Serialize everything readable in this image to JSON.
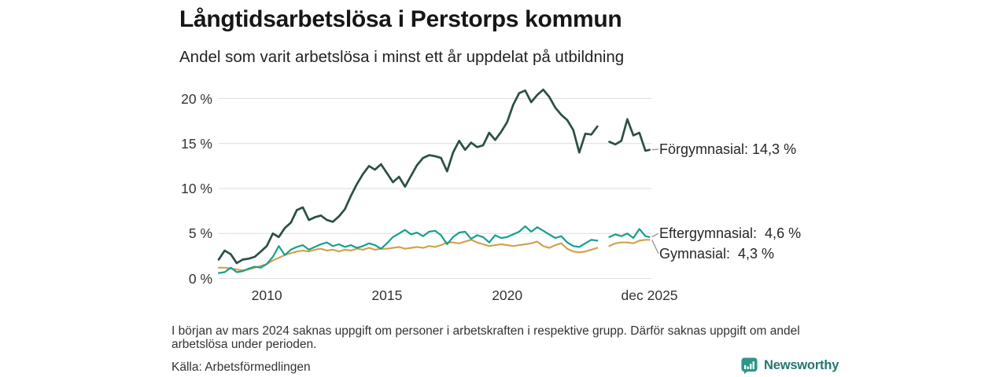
{
  "title": "Långtidsarbetslösa i Perstorps kommun",
  "subtitle": "Andel som varit arbetslösa i minst ett år uppdelat på utbildning",
  "footnote": "I början av mars 2024 saknas uppgift om personer i arbetskraften i respektive grupp. Därför saknas uppgift om andel arbetslösa under perioden.",
  "source": "Källa: Arbetsförmedlingen",
  "logo": {
    "text": "Newsworthy",
    "icon": "bar-chart-speech-bubble-icon",
    "icon_color": "#2e9688",
    "text_color": "#23786e"
  },
  "chart_data": {
    "type": "line",
    "title": "Långtidsarbetslösa i Perstorps kommun",
    "subtitle": "Andel som varit arbetslösa i minst ett år uppdelat på utbildning",
    "xlim": [
      2008,
      2026
    ],
    "ylim": [
      0,
      21.5
    ],
    "grid": "horizontal",
    "grid_color": "#dcdcdc",
    "connector_color": "#8c8c8c",
    "gap_note": "Data missing around March 2024 (null values)",
    "yticks": [
      {
        "label": "20 %",
        "value": 20
      },
      {
        "label": "15 %",
        "value": 15
      },
      {
        "label": "10 %",
        "value": 10
      },
      {
        "label": "5 %",
        "value": 5
      },
      {
        "label": "0 %",
        "value": 0
      }
    ],
    "xticks": [
      {
        "label": "2010",
        "x": 2010
      },
      {
        "label": "2015",
        "x": 2015
      },
      {
        "label": "2020",
        "x": 2020
      },
      {
        "label": "dec 2025",
        "x": 2025.92
      }
    ],
    "x": [
      2008,
      2008.25,
      2008.5,
      2008.75,
      2009,
      2009.25,
      2009.5,
      2009.75,
      2010,
      2010.25,
      2010.5,
      2010.75,
      2011,
      2011.25,
      2011.5,
      2011.75,
      2012,
      2012.25,
      2012.5,
      2012.75,
      2013,
      2013.25,
      2013.5,
      2013.75,
      2014,
      2014.25,
      2014.5,
      2014.75,
      2015,
      2015.25,
      2015.5,
      2015.75,
      2016,
      2016.25,
      2016.5,
      2016.75,
      2017,
      2017.25,
      2017.5,
      2017.75,
      2018,
      2018.25,
      2018.5,
      2018.75,
      2019,
      2019.25,
      2019.5,
      2019.75,
      2020,
      2020.25,
      2020.5,
      2020.75,
      2021,
      2021.25,
      2021.5,
      2021.75,
      2022,
      2022.25,
      2022.5,
      2022.75,
      2023,
      2023.25,
      2023.5,
      2023.75,
      2024,
      2024.25,
      2024.5,
      2024.75,
      2025,
      2025.25,
      2025.5,
      2025.75,
      2025.92
    ],
    "series": [
      {
        "name": "Gymnasial",
        "display_label": "Gymnasial:  4,3 %",
        "final_value": 4.3,
        "final_value_label": "4,3 %",
        "color": "#d2a24b",
        "stroke_width": 2.2,
        "label_y": 323,
        "values": [
          1.2,
          1.2,
          1.1,
          1.0,
          0.9,
          1.0,
          1.2,
          1.4,
          1.6,
          2.0,
          2.3,
          2.6,
          2.8,
          3.0,
          3.1,
          3.0,
          3.2,
          3.3,
          3.1,
          3.2,
          3.0,
          3.2,
          3.1,
          3.3,
          3.2,
          3.4,
          3.2,
          3.3,
          3.3,
          3.4,
          3.5,
          3.3,
          3.4,
          3.5,
          3.4,
          3.6,
          3.5,
          3.7,
          4.0,
          4.0,
          3.9,
          4.1,
          4.3,
          4.0,
          3.8,
          3.6,
          3.7,
          3.8,
          3.7,
          3.6,
          3.7,
          3.8,
          3.9,
          4.1,
          3.6,
          3.4,
          3.7,
          3.9,
          3.3,
          3.0,
          2.9,
          3.0,
          3.2,
          3.4,
          null,
          3.6,
          3.9,
          4.0,
          4.0,
          3.9,
          4.2,
          4.3,
          4.3
        ]
      },
      {
        "name": "Eftergymnasial",
        "display_label": "Eftergymnasial:  4,6 %",
        "final_value": 4.6,
        "final_value_label": "4,6 %",
        "color": "#17a08c",
        "stroke_width": 2.2,
        "label_y": 297,
        "values": [
          0.6,
          0.7,
          1.2,
          0.7,
          0.8,
          1.1,
          1.3,
          1.2,
          1.6,
          2.4,
          3.6,
          2.6,
          3.2,
          3.5,
          3.7,
          3.2,
          3.5,
          3.8,
          4.0,
          3.6,
          3.8,
          3.5,
          3.7,
          3.4,
          3.6,
          3.9,
          3.7,
          3.3,
          3.9,
          4.6,
          5.0,
          5.4,
          4.9,
          5.1,
          4.7,
          5.2,
          5.3,
          4.8,
          3.8,
          4.6,
          5.1,
          5.2,
          4.4,
          4.8,
          4.6,
          4.0,
          4.8,
          4.5,
          4.6,
          4.9,
          5.2,
          5.8,
          5.2,
          5.7,
          5.3,
          4.9,
          4.5,
          4.7,
          4.0,
          3.6,
          3.5,
          3.9,
          4.3,
          4.2,
          null,
          4.6,
          4.9,
          4.7,
          5.0,
          4.5,
          5.5,
          4.7,
          4.6
        ]
      },
      {
        "name": "Förgymnasial",
        "display_label": "Förgymnasial: 14,3 %",
        "final_value": 14.3,
        "final_value_label": "14,3 %",
        "color": "#2b4f47",
        "stroke_width": 2.7,
        "label_y": 190,
        "values": [
          2.1,
          3.1,
          2.7,
          1.7,
          2.1,
          2.2,
          2.4,
          3.0,
          3.6,
          5.0,
          4.6,
          5.6,
          6.2,
          7.6,
          7.9,
          6.5,
          6.8,
          7.0,
          6.5,
          6.3,
          6.9,
          7.7,
          9.2,
          10.5,
          11.6,
          12.5,
          12.1,
          12.7,
          11.7,
          10.7,
          11.3,
          10.2,
          11.4,
          12.6,
          13.4,
          13.7,
          13.6,
          13.4,
          11.9,
          14.0,
          15.3,
          14.3,
          15.1,
          14.6,
          14.8,
          16.2,
          15.4,
          16.3,
          17.4,
          19.3,
          20.6,
          20.9,
          19.6,
          20.4,
          21.0,
          20.2,
          19.0,
          18.2,
          17.6,
          16.5,
          14.0,
          16.1,
          16.0,
          16.9,
          null,
          15.2,
          14.9,
          15.3,
          17.7,
          15.9,
          16.2,
          14.2,
          14.3
        ]
      }
    ]
  }
}
